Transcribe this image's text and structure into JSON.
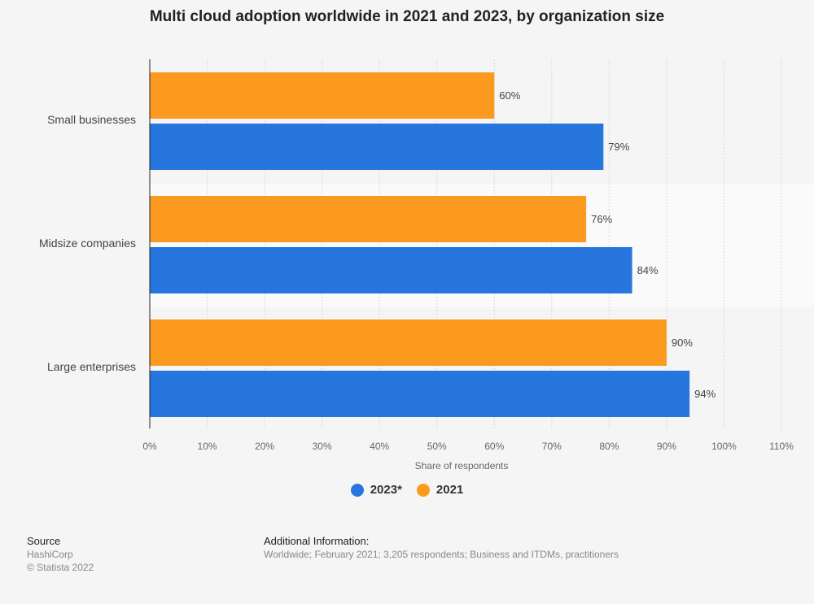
{
  "chart_data": {
    "type": "bar",
    "orientation": "horizontal",
    "title": "Multi cloud adoption worldwide in 2021 and 2023, by organization size",
    "categories": [
      "Small businesses",
      "Midsize companies",
      "Large enterprises"
    ],
    "series": [
      {
        "name": "2021",
        "color": "#fb9a1e",
        "values": [
          60,
          76,
          90
        ]
      },
      {
        "name": "2023*",
        "color": "#2776de",
        "values": [
          79,
          84,
          94
        ]
      }
    ],
    "xlabel": "Share of respondents",
    "xlim": [
      0,
      110
    ],
    "xticks": [
      "0%",
      "10%",
      "20%",
      "30%",
      "40%",
      "50%",
      "60%",
      "70%",
      "80%",
      "90%",
      "100%",
      "110%"
    ],
    "grid": true,
    "legend_placement": "bottom",
    "legend": [
      "2023*",
      "2021"
    ]
  },
  "footer": {
    "source_label": "Source",
    "source": "HashiCorp",
    "copyright": "© Statista 2022",
    "additional_label": "Additional Information:",
    "additional": "Worldwide; February 2021; 3,205 respondents; Business and ITDMs, practitioners"
  }
}
